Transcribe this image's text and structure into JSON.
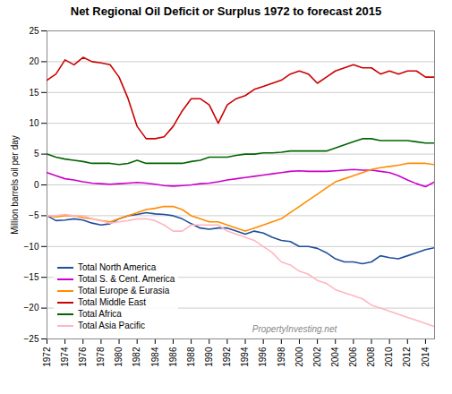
{
  "chart_data": {
    "type": "line",
    "title": "Net Regional Oil Deficit or Surplus 1972 to forecast 2015",
    "y_label": "Million barrels oil per day",
    "x": [
      1972,
      1973,
      1974,
      1975,
      1976,
      1977,
      1978,
      1979,
      1980,
      1981,
      1982,
      1983,
      1984,
      1985,
      1986,
      1987,
      1988,
      1989,
      1990,
      1991,
      1992,
      1993,
      1994,
      1995,
      1996,
      1997,
      1998,
      1999,
      2000,
      2001,
      2002,
      2003,
      2004,
      2005,
      2006,
      2007,
      2008,
      2009,
      2010,
      2011,
      2012,
      2013,
      2014,
      2015
    ],
    "series": [
      {
        "name": "Total North America",
        "color": "#1f4e9c",
        "values": [
          -5.0,
          -5.8,
          -5.7,
          -5.5,
          -5.7,
          -6.2,
          -6.5,
          -6.3,
          -5.5,
          -5.0,
          -4.8,
          -4.5,
          -4.7,
          -4.8,
          -5.0,
          -5.5,
          -6.3,
          -7.0,
          -7.2,
          -7.0,
          -7.0,
          -7.5,
          -8.0,
          -7.5,
          -7.8,
          -8.5,
          -9.0,
          -9.2,
          -10.0,
          -10.0,
          -10.3,
          -11.0,
          -12.0,
          -12.5,
          -12.5,
          -12.8,
          -12.5,
          -11.5,
          -11.8,
          -12.0,
          -11.5,
          -11.0,
          -10.5,
          -10.2
        ]
      },
      {
        "name": "Total S. & Cent. America",
        "color": "#cc00cc",
        "values": [
          2.0,
          1.5,
          1.0,
          0.8,
          0.5,
          0.3,
          0.2,
          0.1,
          0.2,
          0.3,
          0.4,
          0.3,
          0.1,
          -0.1,
          -0.2,
          -0.1,
          0.0,
          0.2,
          0.3,
          0.5,
          0.8,
          1.0,
          1.2,
          1.4,
          1.6,
          1.8,
          2.0,
          2.2,
          2.3,
          2.2,
          2.2,
          2.2,
          2.3,
          2.4,
          2.5,
          2.4,
          2.4,
          2.2,
          2.0,
          1.5,
          0.8,
          0.2,
          -0.3,
          0.5
        ]
      },
      {
        "name": "Total Europe & Eurasia",
        "color": "#ff8c00",
        "values": [
          -5.0,
          -5.2,
          -5.0,
          -5.0,
          -5.3,
          -5.5,
          -5.8,
          -6.0,
          -5.5,
          -5.0,
          -4.5,
          -4.0,
          -3.8,
          -3.5,
          -3.5,
          -4.0,
          -5.0,
          -5.5,
          -6.0,
          -6.0,
          -6.5,
          -7.0,
          -7.5,
          -7.0,
          -6.5,
          -6.0,
          -5.5,
          -4.5,
          -3.5,
          -2.5,
          -1.5,
          -0.5,
          0.5,
          1.0,
          1.5,
          2.0,
          2.5,
          2.8,
          3.0,
          3.2,
          3.5,
          3.5,
          3.5,
          3.3
        ]
      },
      {
        "name": "Total Middle East",
        "color": "#cc0000",
        "values": [
          17.0,
          18.0,
          20.3,
          19.5,
          20.7,
          20.0,
          19.8,
          19.5,
          17.5,
          14.0,
          9.5,
          7.5,
          7.5,
          7.8,
          9.5,
          12.0,
          14.0,
          14.0,
          13.0,
          10.0,
          13.0,
          14.0,
          14.5,
          15.5,
          16.0,
          16.5,
          17.0,
          18.0,
          18.5,
          18.0,
          16.5,
          17.5,
          18.5,
          19.0,
          19.5,
          19.0,
          19.0,
          18.0,
          18.5,
          18.0,
          18.5,
          18.5,
          17.5,
          17.5
        ]
      },
      {
        "name": "Total Africa",
        "color": "#006400",
        "values": [
          5.0,
          4.5,
          4.2,
          4.0,
          3.8,
          3.5,
          3.5,
          3.5,
          3.3,
          3.5,
          4.0,
          3.5,
          3.5,
          3.5,
          3.5,
          3.5,
          3.8,
          4.0,
          4.5,
          4.5,
          4.5,
          4.8,
          5.0,
          5.0,
          5.2,
          5.2,
          5.3,
          5.5,
          5.5,
          5.5,
          5.5,
          5.5,
          6.0,
          6.5,
          7.0,
          7.5,
          7.5,
          7.2,
          7.2,
          7.2,
          7.2,
          7.0,
          6.8,
          6.8
        ]
      },
      {
        "name": "Total Asia Pacific",
        "color": "#ffb6c1",
        "values": [
          -5.0,
          -5.0,
          -4.8,
          -5.0,
          -5.0,
          -5.5,
          -5.8,
          -6.2,
          -6.0,
          -5.8,
          -5.5,
          -5.5,
          -5.8,
          -6.5,
          -7.5,
          -7.5,
          -6.5,
          -6.5,
          -6.5,
          -6.5,
          -7.5,
          -8.0,
          -8.5,
          -9.0,
          -10.0,
          -11.0,
          -12.5,
          -13.0,
          -14.0,
          -14.5,
          -15.5,
          -16.0,
          -17.0,
          -17.5,
          -18.0,
          -18.5,
          -19.5,
          -20.0,
          -20.5,
          -21.0,
          -21.5,
          -22.0,
          -22.5,
          -23.0
        ]
      }
    ],
    "xlim": [
      1972,
      2015
    ],
    "xticks": [
      1972,
      1974,
      1976,
      1978,
      1980,
      1982,
      1984,
      1986,
      1988,
      1990,
      1992,
      1994,
      1996,
      1998,
      2000,
      2002,
      2004,
      2006,
      2008,
      2010,
      2012,
      2014
    ],
    "ylim": [
      -25,
      25
    ],
    "yticks": [
      -25,
      -20,
      -15,
      -10,
      -5,
      0,
      5,
      10,
      15,
      20,
      25
    ],
    "grid": true,
    "legend": "lower left",
    "annotations": [
      "PropertyInvesting.net"
    ]
  }
}
